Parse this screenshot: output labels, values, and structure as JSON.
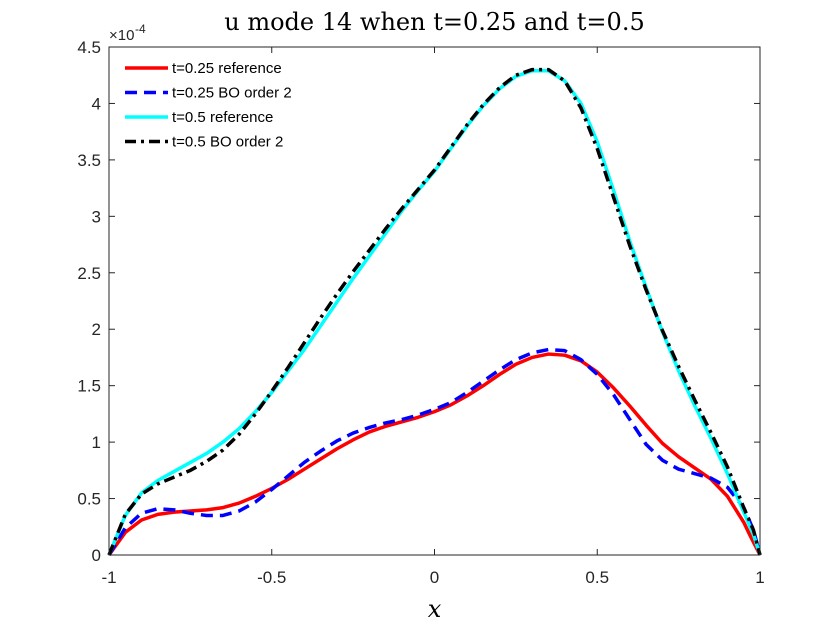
{
  "chart_data": {
    "type": "line",
    "title": "u mode 14 when t=0.25 and t=0.5",
    "xlabel": "x",
    "ylabel": "",
    "y_exponent_label": "×10",
    "y_exponent_power": "-4",
    "xlim": [
      -1,
      1
    ],
    "ylim": [
      0,
      4.5
    ],
    "xticks": [
      -1,
      -0.5,
      0,
      0.5,
      1
    ],
    "xtick_labels": [
      "-1",
      "-0.5",
      "0",
      "0.5",
      "1"
    ],
    "yticks": [
      0,
      0.5,
      1,
      1.5,
      2,
      2.5,
      3,
      3.5,
      4,
      4.5
    ],
    "ytick_labels": [
      "0",
      "0.5",
      "1",
      "1.5",
      "2",
      "2.5",
      "3",
      "3.5",
      "4",
      "4.5"
    ],
    "grid": false,
    "legend_location": "top-left",
    "series": [
      {
        "name": "t=0.25 reference",
        "color": "#ff0000",
        "style": "solid",
        "x": [
          -1,
          -0.95,
          -0.9,
          -0.85,
          -0.8,
          -0.75,
          -0.7,
          -0.65,
          -0.6,
          -0.55,
          -0.5,
          -0.45,
          -0.4,
          -0.35,
          -0.3,
          -0.25,
          -0.2,
          -0.15,
          -0.1,
          -0.05,
          0,
          0.05,
          0.1,
          0.15,
          0.2,
          0.25,
          0.3,
          0.35,
          0.4,
          0.45,
          0.5,
          0.55,
          0.6,
          0.65,
          0.7,
          0.75,
          0.8,
          0.85,
          0.9,
          0.95,
          0.97,
          1
        ],
        "y": [
          0,
          0.2,
          0.31,
          0.36,
          0.38,
          0.39,
          0.4,
          0.42,
          0.46,
          0.52,
          0.59,
          0.67,
          0.76,
          0.85,
          0.94,
          1.02,
          1.09,
          1.14,
          1.18,
          1.22,
          1.27,
          1.33,
          1.41,
          1.5,
          1.6,
          1.69,
          1.75,
          1.78,
          1.77,
          1.72,
          1.62,
          1.48,
          1.32,
          1.15,
          0.99,
          0.87,
          0.77,
          0.67,
          0.52,
          0.29,
          0.17,
          0
        ]
      },
      {
        "name": "t=0.25 BO order 2",
        "color": "#0000ff",
        "style": "dashed",
        "x": [
          -1,
          -0.95,
          -0.9,
          -0.85,
          -0.8,
          -0.75,
          -0.7,
          -0.65,
          -0.6,
          -0.55,
          -0.5,
          -0.45,
          -0.4,
          -0.35,
          -0.3,
          -0.25,
          -0.2,
          -0.15,
          -0.1,
          -0.05,
          0,
          0.05,
          0.1,
          0.15,
          0.2,
          0.25,
          0.3,
          0.35,
          0.4,
          0.45,
          0.5,
          0.55,
          0.6,
          0.65,
          0.7,
          0.75,
          0.8,
          0.85,
          0.9,
          0.95,
          0.98,
          1
        ],
        "y": [
          0,
          0.24,
          0.37,
          0.41,
          0.4,
          0.37,
          0.35,
          0.35,
          0.39,
          0.47,
          0.58,
          0.7,
          0.82,
          0.92,
          1.01,
          1.08,
          1.13,
          1.17,
          1.2,
          1.24,
          1.29,
          1.35,
          1.44,
          1.54,
          1.64,
          1.73,
          1.79,
          1.82,
          1.81,
          1.73,
          1.6,
          1.42,
          1.2,
          0.98,
          0.84,
          0.76,
          0.72,
          0.68,
          0.6,
          0.42,
          0.22,
          0
        ]
      },
      {
        "name": "t=0.5 reference",
        "color": "#00ffff",
        "style": "solid",
        "x": [
          -1,
          -0.95,
          -0.9,
          -0.85,
          -0.8,
          -0.75,
          -0.7,
          -0.65,
          -0.6,
          -0.55,
          -0.5,
          -0.45,
          -0.4,
          -0.35,
          -0.3,
          -0.25,
          -0.2,
          -0.15,
          -0.1,
          -0.05,
          0,
          0.05,
          0.1,
          0.15,
          0.2,
          0.25,
          0.3,
          0.35,
          0.4,
          0.45,
          0.5,
          0.55,
          0.6,
          0.65,
          0.7,
          0.75,
          0.8,
          0.85,
          0.9,
          0.95,
          0.98,
          1
        ],
        "y": [
          0,
          0.35,
          0.55,
          0.66,
          0.74,
          0.82,
          0.9,
          1.0,
          1.12,
          1.27,
          1.44,
          1.63,
          1.82,
          2.03,
          2.24,
          2.45,
          2.65,
          2.85,
          3.05,
          3.23,
          3.4,
          3.6,
          3.8,
          3.98,
          4.13,
          4.24,
          4.29,
          4.29,
          4.2,
          4.0,
          3.66,
          3.23,
          2.78,
          2.37,
          1.98,
          1.63,
          1.32,
          1.03,
          0.72,
          0.38,
          0.18,
          0
        ]
      },
      {
        "name": "t=0.5 BO order 2",
        "color": "#000000",
        "style": "dashdot",
        "x": [
          -1,
          -0.95,
          -0.9,
          -0.85,
          -0.8,
          -0.75,
          -0.7,
          -0.65,
          -0.6,
          -0.55,
          -0.5,
          -0.45,
          -0.4,
          -0.35,
          -0.3,
          -0.25,
          -0.2,
          -0.15,
          -0.1,
          -0.05,
          0,
          0.05,
          0.1,
          0.15,
          0.2,
          0.25,
          0.3,
          0.35,
          0.4,
          0.45,
          0.5,
          0.55,
          0.6,
          0.65,
          0.7,
          0.75,
          0.8,
          0.85,
          0.9,
          0.95,
          0.98,
          1
        ],
        "y": [
          0,
          0.36,
          0.54,
          0.63,
          0.69,
          0.75,
          0.83,
          0.93,
          1.07,
          1.25,
          1.45,
          1.66,
          1.88,
          2.1,
          2.31,
          2.51,
          2.7,
          2.89,
          3.07,
          3.24,
          3.41,
          3.61,
          3.81,
          3.99,
          4.14,
          4.25,
          4.3,
          4.3,
          4.2,
          3.96,
          3.6,
          3.17,
          2.74,
          2.35,
          1.99,
          1.67,
          1.37,
          1.08,
          0.78,
          0.42,
          0.22,
          0
        ]
      }
    ]
  }
}
